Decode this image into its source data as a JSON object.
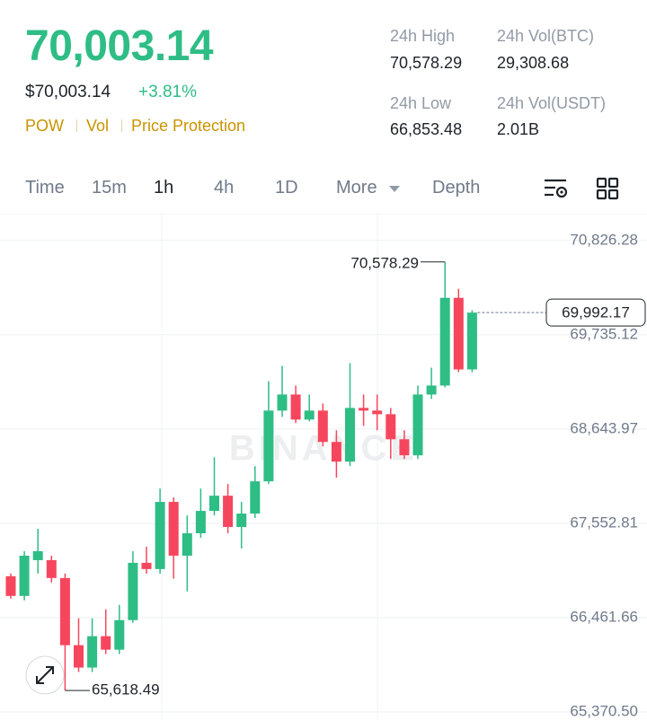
{
  "header": {
    "price": "70,003.14",
    "fiat_price": "$70,003.14",
    "change": "+3.81%",
    "tags": [
      "POW",
      "Vol",
      "Price Protection"
    ],
    "stats": [
      {
        "label": "24h High",
        "value": "70,578.29"
      },
      {
        "label": "24h Vol(BTC)",
        "value": "29,308.68"
      },
      {
        "label": "24h Low",
        "value": "66,853.48"
      },
      {
        "label": "24h Vol(USDT)",
        "value": "2.01B"
      }
    ]
  },
  "tabs": {
    "items": [
      "Time",
      "15m",
      "1h",
      "4h",
      "1D",
      "More",
      "Depth"
    ],
    "active": "1h"
  },
  "chart_data": {
    "type": "candlestick",
    "watermark": "BINANCE",
    "open": [
      66941,
      66713,
      67127,
      67127,
      66920,
      66143,
      65884,
      66247,
      66091,
      66433,
      67096,
      67024,
      67801,
      67179,
      67438,
      67697,
      67873,
      67511,
      67666,
      68039,
      68858,
      69044,
      68754,
      68858,
      68495,
      68267,
      68889,
      68858,
      68816,
      68526,
      68340,
      69044,
      69148,
      70163,
      69334
    ],
    "high": [
      66972,
      67231,
      67490,
      67179,
      66972,
      66454,
      66454,
      66558,
      66609,
      67231,
      67283,
      67956,
      67853,
      67645,
      67956,
      68319,
      68008,
      67801,
      68215,
      69199,
      69376,
      69148,
      69044,
      68940,
      68630,
      69407,
      69044,
      69044,
      68889,
      68630,
      69148,
      69355,
      70578.29,
      70267,
      70020
    ],
    "low": [
      66682,
      66661,
      66972,
      66868,
      65618.49,
      65832,
      65832,
      66040,
      66040,
      66402,
      66972,
      66972,
      66913,
      66765,
      67386,
      67645,
      67438,
      67262,
      67614,
      68008,
      68785,
      68713,
      68733,
      68443,
      68081,
      68215,
      68681,
      68630,
      68298,
      68298,
      68298,
      68992,
      69127,
      69303,
      69303
    ],
    "close": [
      66713,
      67179,
      67231,
      66920,
      66143,
      65884,
      66247,
      66091,
      66433,
      67096,
      67024,
      67801,
      67179,
      67438,
      67697,
      67873,
      67511,
      67666,
      68039,
      68858,
      69044,
      68754,
      68858,
      68495,
      68267,
      68889,
      68858,
      68816,
      68526,
      68340,
      69044,
      69148,
      70163,
      69334,
      69992.17
    ],
    "up_color": "#2ebd85",
    "down_color": "#f6465d",
    "ylim": [
      65277,
      71137
    ],
    "yticks": [
      {
        "value": 70826.28,
        "label": "70,826.28"
      },
      {
        "value": 69735.12,
        "label": "69,735.12"
      },
      {
        "value": 68643.97,
        "label": "68,643.97"
      },
      {
        "value": 67552.81,
        "label": "67,552.81"
      },
      {
        "value": 66461.66,
        "label": "66,461.66"
      },
      {
        "value": 65370.5,
        "label": "65,370.50"
      }
    ],
    "grid": true,
    "high_marker": {
      "value": 70578.29,
      "label": "70,578.29"
    },
    "low_marker": {
      "value": 65618.49,
      "label": "65,618.49"
    },
    "last_price": {
      "value": 69992.17,
      "label": "69,992.17"
    }
  }
}
